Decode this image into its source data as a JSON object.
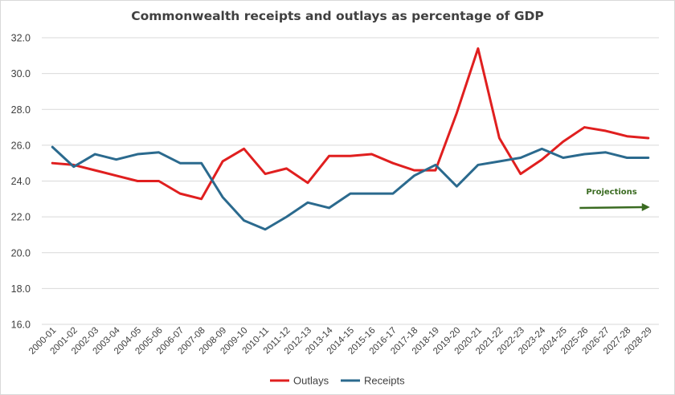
{
  "chart_data": {
    "type": "line",
    "title": "Commonwealth receipts and outlays as percentage of GDP",
    "xlabel": "",
    "ylabel": "",
    "ylim": [
      16,
      32
    ],
    "yticks": [
      16,
      18,
      20,
      22,
      24,
      26,
      28,
      30,
      32
    ],
    "ytick_labels": [
      "16.0",
      "18.0",
      "20.0",
      "22.0",
      "24.0",
      "26.0",
      "28.0",
      "30.0",
      "32.0"
    ],
    "categories": [
      "2000-01",
      "2001-02",
      "2002-03",
      "2003-04",
      "2004-05",
      "2005-06",
      "2006-07",
      "2007-08",
      "2008-09",
      "2009-10",
      "2010-11",
      "2011-12",
      "2012-13",
      "2013-14",
      "2014-15",
      "2015-16",
      "2016-17",
      "2017-18",
      "2018-19",
      "2019-20",
      "2020-21",
      "2021-22",
      "2022-23",
      "2023-24",
      "2024-25",
      "2025-26",
      "2026-27",
      "2027-28",
      "2028-29"
    ],
    "grid": "horizontal",
    "legend_position": "bottom",
    "series": [
      {
        "name": "Outlays",
        "color": "#e01f1f",
        "values": [
          25.0,
          24.9,
          24.6,
          24.3,
          24.0,
          24.0,
          23.3,
          23.0,
          25.1,
          25.8,
          24.4,
          24.7,
          23.9,
          25.4,
          25.4,
          25.5,
          25.0,
          24.6,
          24.6,
          27.8,
          31.4,
          26.4,
          24.4,
          25.2,
          26.2,
          27.0,
          26.8,
          26.5,
          26.4
        ]
      },
      {
        "name": "Receipts",
        "color": "#2b6a8e",
        "values": [
          25.9,
          24.8,
          25.5,
          25.2,
          25.5,
          25.6,
          25.0,
          25.0,
          23.1,
          21.8,
          21.3,
          22.0,
          22.8,
          22.5,
          23.3,
          23.3,
          23.3,
          24.3,
          24.9,
          23.7,
          24.9,
          25.1,
          25.3,
          25.8,
          25.3,
          25.5,
          25.6,
          25.3,
          25.3
        ]
      }
    ],
    "annotation": {
      "text": "Projections",
      "color": "#3a6b21",
      "arrow_y": 22.5,
      "arrow_from_category": "2025-26",
      "arrow_to_category": "2028-29"
    }
  }
}
